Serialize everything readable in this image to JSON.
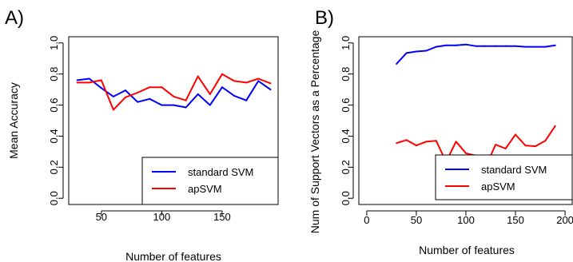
{
  "chart_data": [
    {
      "panel_label": "A)",
      "type": "line",
      "xlabel": "Number of features",
      "ylabel": "Mean Accuracy",
      "xlim": [
        23,
        197
      ],
      "ylim": [
        -0.04,
        1.04
      ],
      "xticks": [
        50,
        100,
        150
      ],
      "yticks": [
        0.0,
        0.2,
        0.4,
        0.6,
        0.8,
        1.0
      ],
      "ytick_labels": [
        "0.0",
        "0.2",
        "0.4",
        "0.6",
        "0.8",
        "1.0"
      ],
      "legend_position": "bottom-right",
      "x": [
        30,
        40,
        50,
        60,
        70,
        80,
        90,
        100,
        110,
        120,
        130,
        140,
        150,
        160,
        170,
        180,
        190
      ],
      "series": [
        {
          "name": "standard SVM",
          "color": "#0000ff",
          "values": [
            0.76,
            0.77,
            0.71,
            0.655,
            0.695,
            0.62,
            0.64,
            0.6,
            0.6,
            0.585,
            0.67,
            0.6,
            0.715,
            0.66,
            0.63,
            0.755,
            0.7
          ]
        },
        {
          "name": "apSVM",
          "color": "#ff0000",
          "values": [
            0.745,
            0.745,
            0.76,
            0.57,
            0.65,
            0.68,
            0.715,
            0.715,
            0.655,
            0.63,
            0.785,
            0.67,
            0.8,
            0.755,
            0.745,
            0.77,
            0.74
          ]
        }
      ]
    },
    {
      "panel_label": "B)",
      "type": "line",
      "xlabel": "Number of features",
      "ylabel": "Num of Support Vectors as a Percentage",
      "xlim": [
        -8,
        208
      ],
      "ylim": [
        -0.04,
        1.04
      ],
      "xticks": [
        0,
        50,
        100,
        150,
        200
      ],
      "yticks": [
        0.0,
        0.2,
        0.4,
        0.6,
        0.8,
        1.0
      ],
      "ytick_labels": [
        "0.0",
        "0.2",
        "0.4",
        "0.6",
        "0.8",
        "1.0"
      ],
      "legend_position": "bottom-right",
      "x": [
        30,
        40,
        50,
        60,
        70,
        80,
        90,
        100,
        110,
        120,
        130,
        140,
        150,
        160,
        170,
        180,
        190
      ],
      "series": [
        {
          "name": "standard SVM",
          "color": "#0000ff",
          "values": [
            0.865,
            0.935,
            0.945,
            0.95,
            0.975,
            0.985,
            0.985,
            0.99,
            0.98,
            0.98,
            0.98,
            0.98,
            0.98,
            0.975,
            0.975,
            0.975,
            0.985
          ]
        },
        {
          "name": "apSVM",
          "color": "#ff0000",
          "values": [
            0.355,
            0.375,
            0.34,
            0.365,
            0.37,
            0.235,
            0.365,
            0.29,
            0.275,
            0.205,
            0.345,
            0.32,
            0.41,
            0.34,
            0.335,
            0.37,
            0.465
          ]
        }
      ]
    }
  ]
}
